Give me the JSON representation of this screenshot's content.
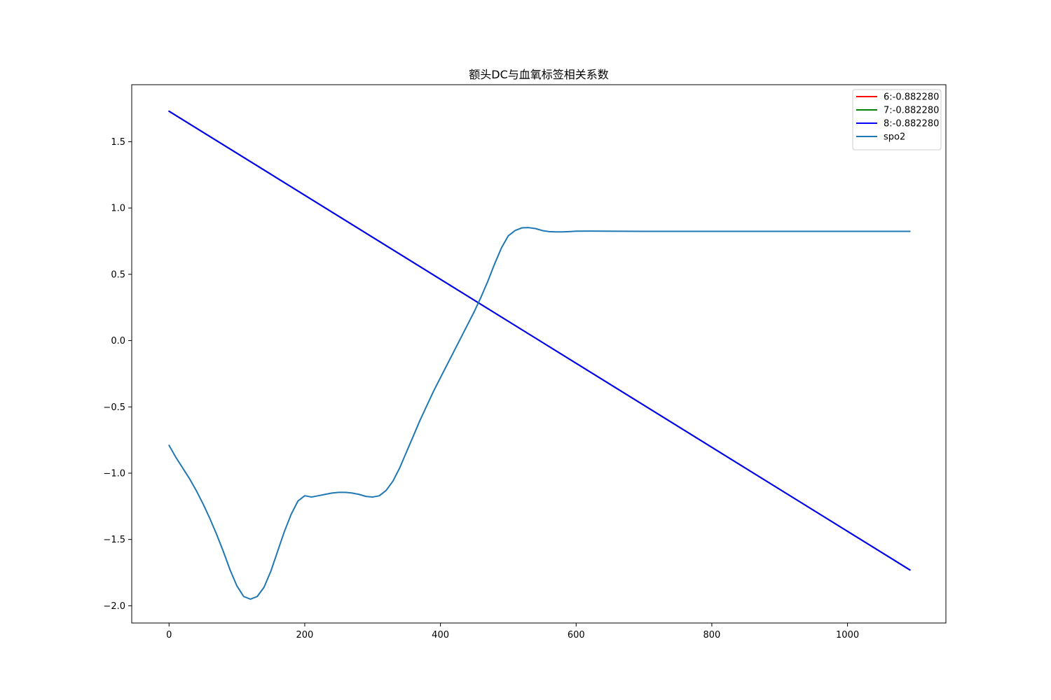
{
  "chart_data": {
    "type": "line",
    "title": "额头DC与血氧标签相关系数",
    "xlabel": "",
    "ylabel": "",
    "xlim": [
      -55,
      1145
    ],
    "ylim": [
      -2.13,
      1.93
    ],
    "x_ticks": [
      0,
      200,
      400,
      600,
      800,
      1000
    ],
    "x_tick_labels": [
      "0",
      "200",
      "400",
      "600",
      "800",
      "1000"
    ],
    "y_ticks": [
      -2.0,
      -1.5,
      -1.0,
      -0.5,
      0.0,
      0.5,
      1.0,
      1.5
    ],
    "y_tick_labels": [
      "−2.0",
      "−1.5",
      "−1.0",
      "−0.5",
      "0.0",
      "0.5",
      "1.0",
      "1.5"
    ],
    "grid": false,
    "legend_position": "top-right",
    "series": [
      {
        "name": "6:-0.882280",
        "color": "#ff0000",
        "x": [
          0,
          1092
        ],
        "y": [
          1.73,
          -1.73
        ]
      },
      {
        "name": "7:-0.882280",
        "color": "#008000",
        "x": [
          0,
          1092
        ],
        "y": [
          1.73,
          -1.73
        ]
      },
      {
        "name": "8:-0.882280",
        "color": "#0000ff",
        "x": [
          0,
          1092
        ],
        "y": [
          1.73,
          -1.73
        ]
      },
      {
        "name": "spo2",
        "color": "#1f77b4",
        "x": [
          0,
          10,
          20,
          30,
          40,
          50,
          60,
          70,
          80,
          90,
          100,
          110,
          120,
          130,
          140,
          150,
          160,
          170,
          180,
          190,
          200,
          210,
          220,
          230,
          240,
          250,
          260,
          270,
          280,
          290,
          300,
          310,
          320,
          330,
          340,
          350,
          360,
          370,
          380,
          390,
          400,
          410,
          420,
          430,
          440,
          450,
          460,
          470,
          480,
          490,
          500,
          510,
          520,
          530,
          540,
          550,
          560,
          570,
          580,
          590,
          600,
          620,
          640,
          700,
          800,
          900,
          1000,
          1092
        ],
        "y": [
          -0.79,
          -0.88,
          -0.96,
          -1.04,
          -1.13,
          -1.23,
          -1.34,
          -1.46,
          -1.59,
          -1.73,
          -1.85,
          -1.93,
          -1.95,
          -1.93,
          -1.86,
          -1.74,
          -1.59,
          -1.44,
          -1.31,
          -1.21,
          -1.17,
          -1.18,
          -1.17,
          -1.16,
          -1.15,
          -1.145,
          -1.145,
          -1.15,
          -1.16,
          -1.175,
          -1.18,
          -1.17,
          -1.13,
          -1.06,
          -0.96,
          -0.84,
          -0.72,
          -0.6,
          -0.49,
          -0.38,
          -0.28,
          -0.18,
          -0.08,
          0.02,
          0.12,
          0.22,
          0.33,
          0.45,
          0.58,
          0.7,
          0.79,
          0.83,
          0.85,
          0.852,
          0.845,
          0.83,
          0.822,
          0.82,
          0.82,
          0.822,
          0.825,
          0.826,
          0.825,
          0.824,
          0.824,
          0.824,
          0.824,
          0.824
        ]
      }
    ]
  }
}
